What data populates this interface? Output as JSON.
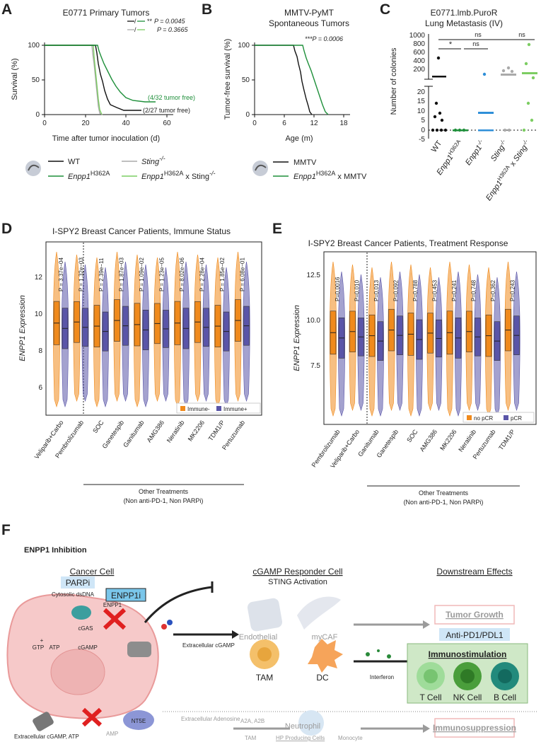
{
  "panels": {
    "A": {
      "letter": "A",
      "title": "E0771 Primary Tumors",
      "ylabel": "Survival (%)",
      "xlabel": "Time after tumor inoculation (d)",
      "yticks": [
        "0",
        "50",
        "100"
      ],
      "xticks": [
        "0",
        "20",
        "40",
        "60"
      ],
      "stats": [
        {
          "sig": "**",
          "p": "P = 0.0045"
        },
        {
          "sig": "",
          "p": "P = 0.3665"
        }
      ],
      "annot_green": "(4/32 tumor free)",
      "annot_black": "(2/27 tumor free)",
      "legend": [
        {
          "label": "WT",
          "sup": "",
          "label2": "",
          "color": "#111111"
        },
        {
          "label": "Sting",
          "sup": "-/-",
          "label2": "",
          "color": "#aaaaaa"
        },
        {
          "label": "Enpp1",
          "sup": "H362A",
          "label2": "",
          "color": "#1e8f3a"
        },
        {
          "label": "Enpp1",
          "sup": "H362A",
          "label2": " x Sting",
          "sup2": "-/-",
          "color": "#7ccd62"
        }
      ]
    },
    "B": {
      "letter": "B",
      "title1": "MMTV-PyMT",
      "title2": "Spontaneous Tumors",
      "ylabel": "Tumor-free survival (%)",
      "xlabel": "Age (m)",
      "yticks": [
        "0",
        "50",
        "100"
      ],
      "xticks": [
        "0",
        "6",
        "12",
        "18"
      ],
      "stat": "***P = 0.0006",
      "legend": [
        {
          "label": "MMTV",
          "color": "#111111"
        },
        {
          "label": "Enpp1",
          "sup": "H362A",
          "label2": " x MMTV",
          "color": "#1e8f3a"
        }
      ]
    },
    "C": {
      "letter": "C",
      "title1": "E0771.lmb.PuroR",
      "title2": "Lung Metastasis (IV)",
      "ylabel": "Number of colonies",
      "yticks_top": [
        "1000",
        "800",
        "600",
        "400",
        "200"
      ],
      "yticks_bot": [
        "20",
        "15",
        "10",
        "5",
        "0",
        "-5"
      ],
      "sig": [
        "*",
        "ns",
        "ns",
        "ns"
      ],
      "groups": [
        "WT",
        "Enpp1H362A",
        "Enpp1-/-",
        "Sting-/-",
        "Enpp1H362A x Sting-/-"
      ]
    },
    "D": {
      "letter": "D",
      "title": "I-SPY2 Breast Cancer Patients, Immune Status",
      "ylabel": "ENPP1 Expression",
      "yticks": [
        "6",
        "8",
        "10",
        "12"
      ],
      "legend": [
        "Immune-",
        "Immune+"
      ],
      "group_label1": "Other Treatments",
      "group_label2": "(Non anti-PD-1, Non PARPi)",
      "treatments": [
        "Veliparib+Carbo",
        "Pembrolizumab",
        "SOC",
        "Ganetespib",
        "Ganitumab",
        "AMG386",
        "Neratinib",
        "MK2206",
        "TDM1/P",
        "Pertuzumab"
      ],
      "pvalues": [
        "P = 3.37e−04",
        "P = 1.32e−03",
        "P = 2.39e−11",
        "P = 1.87e−03",
        "P = 1.09e−02",
        "P = 1.23e−05",
        "P = 8.02e−06",
        "P = 2.28e−04",
        "P = 1.85e−02",
        "P = 6.08e−01"
      ]
    },
    "E": {
      "letter": "E",
      "title": "I-SPY2 Breast Cancer Patients, Treatment Response",
      "ylabel": "ENPP1 Expression",
      "yticks": [
        "7.5",
        "10.0",
        "12.5"
      ],
      "legend": [
        "no pCR",
        "pCR"
      ],
      "group_label1": "Other Treatments",
      "group_label2": "(Non anti-PD-1, Non PARPi)",
      "treatments": [
        "Pembrolizumab",
        "Veliparib+Carbo",
        "Ganitumab",
        "Ganetespib",
        "SOC",
        "AMG386",
        "MK2206",
        "Neratinib",
        "Pertuzumab",
        "TDM1/P"
      ],
      "pvalues": [
        "P=0.0016",
        "P=0.010",
        "P=0.013",
        "P=0.092",
        "P=0.788",
        "P=0.453",
        "P=0.241",
        "P=0.748",
        "P=0.362",
        "P=0.243"
      ]
    },
    "F": {
      "letter": "F",
      "title": "ENPP1 Inhibition",
      "col1": "Cancer Cell",
      "col2": "cGAMP Responder Cell",
      "col2b": "STING Activation",
      "col3": "Downstream Effects",
      "parpi": "PARPi",
      "enpp1i": "ENPP1i",
      "enpp1": "ENPP1",
      "dsdna": "Cytosolic dsDNA",
      "cgas": "cGAS",
      "gtp": "GTP",
      "atp": "ATP",
      "plus": "+",
      "cgamp": "cGAMP",
      "extra_cgamp": "Extracellular cGAMP",
      "endothelial": "Endothelial",
      "mycaf": "myCAF",
      "tam": "TAM",
      "dc": "DC",
      "interferon": "Interferon",
      "tumor_growth": "Tumor Growth",
      "anti_pd1": "Anti-PD1/PDL1",
      "immunostim": "Immunostimulation",
      "tcell": "T Cell",
      "nkcell": "NK Cell",
      "bcell": "B Cell",
      "nt5e": "NT5E",
      "extra_adenosine": "Extracellular Adenosine",
      "a2a": "A2A, A2B",
      "neutrophil": "Neutrophil",
      "tam2": "TAM",
      "monocyte": "Monocyte",
      "amp": "AMP",
      "extra_cgamp_atp": "Extracellular cGAMP, ATP",
      "immunosupp": "Immunosuppression",
      "hp_cells": "HP Producing Cells"
    }
  },
  "colors": {
    "black": "#111111",
    "green": "#1e8f3a",
    "lightgreen": "#7ccd62",
    "grey": "#aaaaaa",
    "blue": "#2f8fd8",
    "orange": "#f08a1c",
    "purple": "#5a55a8",
    "pink": "#f3b8b8"
  }
}
